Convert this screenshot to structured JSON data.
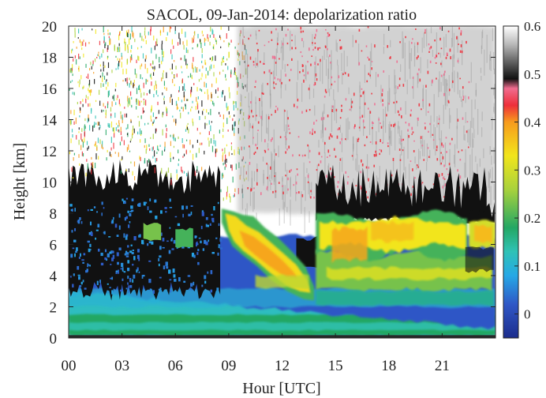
{
  "chart_data": {
    "type": "heatmap",
    "title": "SACOL, 09-Jan-2014: depolarization ratio",
    "xlabel": "Hour [UTC]",
    "ylabel": "Height [km]",
    "xlim": [
      0,
      24
    ],
    "ylim": [
      0,
      20
    ],
    "x_ticks": [
      0,
      3,
      6,
      9,
      12,
      15,
      18,
      21
    ],
    "x_tick_labels": [
      "00",
      "03",
      "06",
      "09",
      "12",
      "15",
      "18",
      "21"
    ],
    "y_ticks": [
      0,
      2,
      4,
      6,
      8,
      10,
      12,
      14,
      16,
      18,
      20
    ],
    "y_tick_labels": [
      "0",
      "2",
      "4",
      "6",
      "8",
      "10",
      "12",
      "14",
      "16",
      "18",
      "20"
    ],
    "colorbar": {
      "range": [
        -0.05,
        0.6
      ],
      "ticks": [
        0,
        0.1,
        0.2,
        0.3,
        0.4,
        0.5,
        0.6
      ],
      "tick_labels": [
        "0",
        "0.1",
        "0.2",
        "0.3",
        "0.4",
        "0.5",
        "0.6"
      ],
      "colormap_stops": [
        {
          "value": -0.05,
          "color": "#1c2d8c"
        },
        {
          "value": 0.02,
          "color": "#2f57c6"
        },
        {
          "value": 0.08,
          "color": "#25a8e6"
        },
        {
          "value": 0.13,
          "color": "#2fc2b6"
        },
        {
          "value": 0.18,
          "color": "#24a764"
        },
        {
          "value": 0.26,
          "color": "#a9d23c"
        },
        {
          "value": 0.33,
          "color": "#f2e51b"
        },
        {
          "value": 0.4,
          "color": "#f79b1d"
        },
        {
          "value": 0.435,
          "color": "#ee2f3a"
        },
        {
          "value": 0.47,
          "color": "#f06c8f"
        },
        {
          "value": 0.49,
          "color": "#111111"
        },
        {
          "value": 0.52,
          "color": "#555555"
        },
        {
          "value": 0.56,
          "color": "#b5b5b5"
        },
        {
          "value": 0.6,
          "color": "#ffffff"
        }
      ]
    },
    "features": [
      {
        "hours": [
          0,
          24
        ],
        "height_km": [
          0,
          0.15
        ],
        "value": 0.5
      },
      {
        "hours": [
          0,
          24
        ],
        "height_km": [
          0.15,
          1.5
        ],
        "value": 0.18
      },
      {
        "hours": [
          0,
          24
        ],
        "height_km": [
          1.5,
          3.0
        ],
        "value": 0.1
      },
      {
        "hours": [
          0,
          24
        ],
        "height_km": [
          3.0,
          6.5
        ],
        "value": 0.02
      },
      {
        "hours": [
          0,
          8.5
        ],
        "height_km": [
          2.5,
          11
        ],
        "value": 0.5
      },
      {
        "hours": [
          8.5,
          13.5
        ],
        "height_km": [
          2.5,
          8
        ],
        "value": 0.37
      },
      {
        "hours": [
          14,
          24
        ],
        "height_km": [
          5,
          8
        ],
        "value": 0.33
      },
      {
        "hours": [
          14,
          24
        ],
        "height_km": [
          3,
          5
        ],
        "value": 0.23
      },
      {
        "hours": [
          14,
          24
        ],
        "height_km": [
          8,
          11
        ],
        "value": 0.5
      },
      {
        "hours": [
          0,
          24
        ],
        "height_km": [
          8,
          20
        ],
        "value": 0.6
      }
    ]
  }
}
